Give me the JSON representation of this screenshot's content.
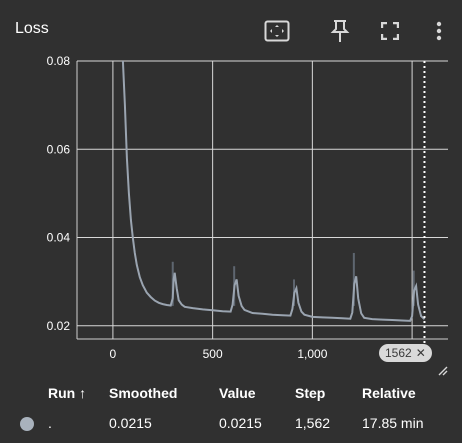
{
  "panel": {
    "title": "Loss",
    "icons": [
      "fit-domain-icon",
      "pin-icon",
      "fullscreen-icon",
      "more-vert-icon"
    ]
  },
  "chart_data": {
    "type": "line",
    "title": "Loss",
    "xlabel": "",
    "ylabel": "",
    "xlim": [
      -180,
      1680
    ],
    "ylim": [
      0.017,
      0.08
    ],
    "x_ticks": [
      0,
      500,
      1000
    ],
    "x_tick_labels": [
      "0",
      "500",
      "1,000"
    ],
    "y_ticks": [
      0.02,
      0.04,
      0.06,
      0.08
    ],
    "y_tick_labels": [
      "0.02",
      "0.04",
      "0.06",
      "0.08"
    ],
    "grid": true,
    "hover_step_label": "1562",
    "series": [
      {
        "color": "#9aa4b0",
        "raw_color": "#5e6670",
        "x": [
          50,
          60,
          70,
          80,
          90,
          100,
          110,
          120,
          135,
          150,
          170,
          190,
          210,
          230,
          250,
          270,
          290,
          300,
          305,
          310,
          320,
          330,
          345,
          360,
          400,
          450,
          500,
          550,
          590,
          600,
          610,
          620,
          630,
          645,
          660,
          700,
          750,
          800,
          850,
          890,
          900,
          910,
          920,
          930,
          945,
          960,
          1000,
          1050,
          1100,
          1150,
          1190,
          1200,
          1210,
          1220,
          1230,
          1245,
          1260,
          1300,
          1350,
          1400,
          1450,
          1490,
          1500,
          1510,
          1520,
          1530,
          1545,
          1562
        ],
        "values": [
          0.08,
          0.07,
          0.058,
          0.05,
          0.044,
          0.04,
          0.0365,
          0.0338,
          0.031,
          0.0292,
          0.0275,
          0.0265,
          0.0257,
          0.0252,
          0.0249,
          0.0247,
          0.0246,
          0.0262,
          0.0305,
          0.032,
          0.0285,
          0.0258,
          0.0248,
          0.0243,
          0.024,
          0.0237,
          0.0235,
          0.0233,
          0.0232,
          0.0248,
          0.0292,
          0.0305,
          0.0268,
          0.0245,
          0.0236,
          0.0229,
          0.0227,
          0.0225,
          0.0224,
          0.0223,
          0.0238,
          0.0275,
          0.0285,
          0.0252,
          0.0232,
          0.0225,
          0.022,
          0.0219,
          0.0218,
          0.0217,
          0.0216,
          0.023,
          0.0295,
          0.0312,
          0.0262,
          0.0228,
          0.0218,
          0.0215,
          0.0214,
          0.0213,
          0.0212,
          0.0211,
          0.0222,
          0.028,
          0.029,
          0.0248,
          0.0222,
          0.0215
        ],
        "raw_spikes": [
          {
            "x": 300,
            "value": 0.0345
          },
          {
            "x": 608,
            "value": 0.0335
          },
          {
            "x": 908,
            "value": 0.0305
          },
          {
            "x": 1208,
            "value": 0.0365
          },
          {
            "x": 1508,
            "value": 0.0325
          }
        ]
      }
    ]
  },
  "table": {
    "headers": {
      "run": "Run ↑",
      "smoothed": "Smoothed",
      "value": "Value",
      "step": "Step",
      "relative": "Relative"
    },
    "rows": [
      {
        "run": ".",
        "smoothed": "0.0215",
        "value": "0.0215",
        "step": "1,562",
        "relative": "17.85 min",
        "color": "#a9b2bd"
      }
    ]
  }
}
